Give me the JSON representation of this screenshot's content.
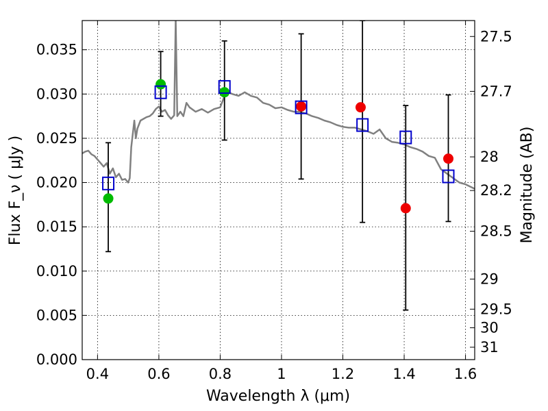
{
  "chart_data": {
    "type": "scatter",
    "title": "",
    "xlabel": "Wavelength  λ (μm)",
    "ylabel": "Flux  F_ν  ( μJy )",
    "ylabel_right": "Magnitude (AB)",
    "xlim": [
      0.35,
      1.63
    ],
    "ylim": [
      0.0,
      0.0383
    ],
    "grid": true,
    "x_ticks": [
      0.4,
      0.6,
      0.8,
      1.0,
      1.2,
      1.4,
      1.6
    ],
    "x_tick_labels": [
      "0.4",
      "0.6",
      "0.8",
      "1",
      "1.2",
      "1.4",
      "1.6"
    ],
    "y_ticks": [
      0.0,
      0.005,
      0.01,
      0.015,
      0.02,
      0.025,
      0.03,
      0.035
    ],
    "y_tick_labels": [
      "0.000",
      "0.005",
      "0.010",
      "0.015",
      "0.020",
      "0.025",
      "0.030",
      "0.035"
    ],
    "right_ticks": [
      {
        "label": "27.5",
        "flux": 0.0365
      },
      {
        "label": "27.7",
        "flux": 0.0303
      },
      {
        "label": "28",
        "flux": 0.0229
      },
      {
        "label": "28.2",
        "flux": 0.0191
      },
      {
        "label": "28.5",
        "flux": 0.0145
      },
      {
        "label": "29",
        "flux": 0.0091
      },
      {
        "label": "29.5",
        "flux": 0.0057
      },
      {
        "label": "30",
        "flux": 0.0036
      },
      {
        "label": "31",
        "flux": 0.0014
      }
    ],
    "series": [
      {
        "name": "model_spectrum",
        "kind": "line",
        "color": "#808080",
        "x": [
          0.35,
          0.36,
          0.37,
          0.38,
          0.39,
          0.4,
          0.41,
          0.42,
          0.43,
          0.44,
          0.45,
          0.46,
          0.47,
          0.48,
          0.49,
          0.5,
          0.505,
          0.51,
          0.52,
          0.525,
          0.53,
          0.54,
          0.55,
          0.56,
          0.57,
          0.58,
          0.59,
          0.6,
          0.61,
          0.62,
          0.63,
          0.64,
          0.65,
          0.655,
          0.66,
          0.67,
          0.68,
          0.69,
          0.7,
          0.72,
          0.74,
          0.76,
          0.78,
          0.8,
          0.82,
          0.84,
          0.86,
          0.88,
          0.9,
          0.92,
          0.94,
          0.96,
          0.98,
          1.0,
          1.02,
          1.04,
          1.06,
          1.08,
          1.1,
          1.12,
          1.14,
          1.16,
          1.18,
          1.2,
          1.22,
          1.24,
          1.26,
          1.28,
          1.3,
          1.32,
          1.34,
          1.36,
          1.38,
          1.4,
          1.42,
          1.44,
          1.46,
          1.48,
          1.5,
          1.52,
          1.54,
          1.56,
          1.58,
          1.6,
          1.63
        ],
        "y": [
          0.0233,
          0.0235,
          0.0236,
          0.0232,
          0.023,
          0.0226,
          0.0222,
          0.0218,
          0.0222,
          0.021,
          0.0216,
          0.0206,
          0.021,
          0.0203,
          0.0204,
          0.02,
          0.0205,
          0.024,
          0.027,
          0.025,
          0.0261,
          0.027,
          0.0272,
          0.0274,
          0.0275,
          0.0278,
          0.0283,
          0.0286,
          0.028,
          0.0282,
          0.0276,
          0.0272,
          0.0276,
          0.0385,
          0.0275,
          0.028,
          0.0275,
          0.029,
          0.0285,
          0.028,
          0.0283,
          0.0279,
          0.0283,
          0.0285,
          0.0303,
          0.03,
          0.0298,
          0.0302,
          0.0298,
          0.0296,
          0.029,
          0.0288,
          0.0284,
          0.0285,
          0.0282,
          0.028,
          0.028,
          0.0278,
          0.0275,
          0.0273,
          0.027,
          0.0268,
          0.0265,
          0.0263,
          0.0262,
          0.0262,
          0.026,
          0.0258,
          0.0255,
          0.026,
          0.025,
          0.0246,
          0.0245,
          0.0243,
          0.024,
          0.0238,
          0.0235,
          0.023,
          0.0228,
          0.0215,
          0.021,
          0.0205,
          0.02,
          0.0198,
          0.0193
        ]
      },
      {
        "name": "model_photometry",
        "kind": "open_square",
        "color": "#0000cc",
        "x": [
          0.435,
          0.606,
          0.814,
          1.064,
          1.264,
          1.405,
          1.544
        ],
        "y": [
          0.0199,
          0.0302,
          0.0308,
          0.0285,
          0.0265,
          0.0251,
          0.0207
        ]
      },
      {
        "name": "observed_green",
        "kind": "filled_circle",
        "color": "#00bb00",
        "x": [
          0.435,
          0.606,
          0.814
        ],
        "y": [
          0.0182,
          0.0311,
          0.0302
        ]
      },
      {
        "name": "observed_red",
        "kind": "filled_circle",
        "color": "#ee0000",
        "x": [
          1.064,
          1.258,
          1.405,
          1.544
        ],
        "y": [
          0.0286,
          0.0285,
          0.0171,
          0.0227
        ]
      },
      {
        "name": "error_bars",
        "kind": "errorbar",
        "color": "#000000",
        "x": [
          0.435,
          0.606,
          0.814,
          1.064,
          1.264,
          1.405,
          1.544
        ],
        "low": [
          0.0122,
          0.0275,
          0.0248,
          0.0204,
          0.0155,
          0.0056,
          0.0156
        ],
        "high": [
          0.0245,
          0.0348,
          0.036,
          0.0368,
          0.0383,
          0.0287,
          0.0299
        ]
      }
    ]
  }
}
